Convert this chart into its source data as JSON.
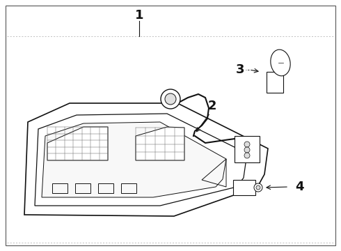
{
  "background_color": "#ffffff",
  "border_color": "#555555",
  "dotted_line_color": "#999999",
  "part_color": "#111111",
  "fig_width": 4.9,
  "fig_height": 3.6,
  "dpi": 100
}
